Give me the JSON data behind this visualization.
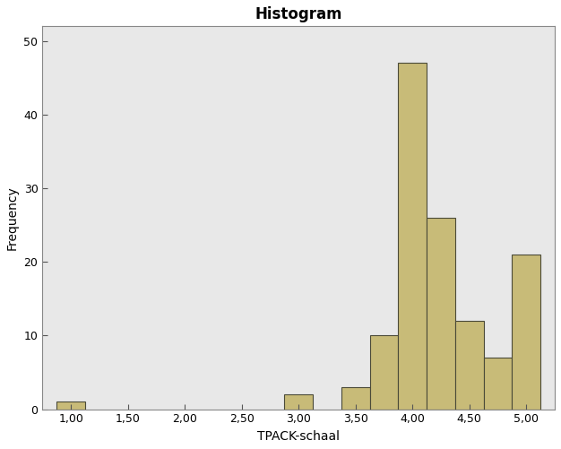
{
  "title": "Histogram",
  "xlabel": "TPACK-schaal",
  "ylabel": "Frequency",
  "bar_color": "#c8bb78",
  "bar_edge_color": "#4a4a38",
  "figure_bg_color": "#ffffff",
  "axes_bg_color": "#e8e8e8",
  "xlim": [
    0.75,
    5.25
  ],
  "ylim": [
    0,
    52
  ],
  "xticks": [
    1.0,
    1.5,
    2.0,
    2.5,
    3.0,
    3.5,
    4.0,
    4.5,
    5.0
  ],
  "xtick_labels": [
    "1,00",
    "1,50",
    "2,00",
    "2,50",
    "3,00",
    "3,50",
    "4,00",
    "4,50",
    "5,00"
  ],
  "yticks": [
    0,
    10,
    20,
    30,
    40,
    50
  ],
  "bar_lefts": [
    0.875,
    2.875,
    3.375,
    3.625,
    3.875,
    4.125,
    4.375,
    4.625,
    4.875
  ],
  "bar_heights": [
    1,
    2,
    3,
    10,
    47,
    26,
    12,
    7,
    21
  ],
  "bar_width": 0.25,
  "title_fontsize": 12,
  "label_fontsize": 10,
  "tick_fontsize": 9,
  "spine_color": "#888888",
  "tick_color": "#555555"
}
